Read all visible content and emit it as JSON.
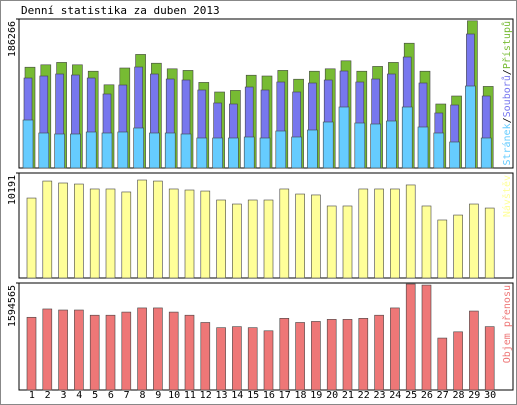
{
  "chart_data": [
    {
      "type": "bar",
      "title": "Denní statistika za duben 2013",
      "ylim": [
        0,
        186266
      ],
      "yticks": [
        186266
      ],
      "legend_separator": "/",
      "series": [
        {
          "name": "Stránek",
          "color": "#66ccff",
          "values": [
            60000,
            43750,
            42500,
            42500,
            45000,
            43750,
            45000,
            50000,
            43750,
            43750,
            42500,
            37500,
            37500,
            37500,
            38750,
            37500,
            46250,
            38750,
            47500,
            57500,
            76250,
            56250,
            55000,
            58750,
            76250,
            51250,
            43750,
            32500,
            102500,
            37500
          ]
        },
        {
          "name": "Souborů",
          "color": "#7777ee",
          "values": [
            112500,
            115000,
            117500,
            116250,
            112500,
            92500,
            103750,
            126250,
            117500,
            111250,
            110000,
            97500,
            81250,
            80000,
            101250,
            97500,
            107500,
            95000,
            106250,
            110000,
            121250,
            107500,
            111250,
            117500,
            138750,
            106250,
            68750,
            78750,
            167500,
            90000
          ]
        },
        {
          "name": "Přístupů",
          "color": "#77bb33",
          "values": [
            126000,
            129000,
            132000,
            129000,
            121000,
            104000,
            125000,
            142000,
            131000,
            124000,
            122000,
            107000,
            95000,
            97000,
            116000,
            115000,
            122000,
            111000,
            121000,
            124000,
            134000,
            121000,
            127000,
            132000,
            156000,
            121000,
            80000,
            90000,
            184000,
            102000
          ]
        }
      ]
    },
    {
      "type": "bar",
      "ylim": [
        0,
        10191
      ],
      "yticks": [
        10191
      ],
      "series": [
        {
          "name": "Návštěv",
          "color": "#ffff99",
          "values": [
            7760,
            9410,
            9220,
            9120,
            8640,
            8640,
            8350,
            9510,
            9410,
            8640,
            8540,
            8440,
            7570,
            7180,
            7570,
            7570,
            8640,
            8150,
            8060,
            6990,
            6990,
            8640,
            8640,
            8640,
            9030,
            6990,
            5630,
            6110,
            7180,
            6790
          ]
        }
      ]
    },
    {
      "type": "bar",
      "ylim": [
        0,
        1594565
      ],
      "yticks": [
        1594565
      ],
      "categories": [
        "1",
        "2",
        "3",
        "4",
        "5",
        "6",
        "7",
        "8",
        "9",
        "10",
        "11",
        "12",
        "13",
        "14",
        "15",
        "16",
        "17",
        "18",
        "19",
        "20",
        "21",
        "22",
        "23",
        "24",
        "25",
        "26",
        "27",
        "28",
        "29",
        "30"
      ],
      "highlight": {
        "color": "#66aa33",
        "categories": [
          "6",
          "7",
          "13",
          "14",
          "20",
          "21",
          "27",
          "28"
        ]
      },
      "series": [
        {
          "name": "Objem přenosu",
          "color": "#ee7777",
          "values": [
            1083700,
            1207500,
            1192000,
            1192000,
            1114600,
            1114600,
            1161100,
            1223000,
            1223000,
            1161100,
            1114600,
            1006300,
            928900,
            944300,
            928900,
            882400,
            1068200,
            1006300,
            1021700,
            1052700,
            1052700,
            1068200,
            1114600,
            1223000,
            1579100,
            1563600,
            774000,
            866900,
            1176600,
            944300
          ]
        }
      ]
    }
  ]
}
